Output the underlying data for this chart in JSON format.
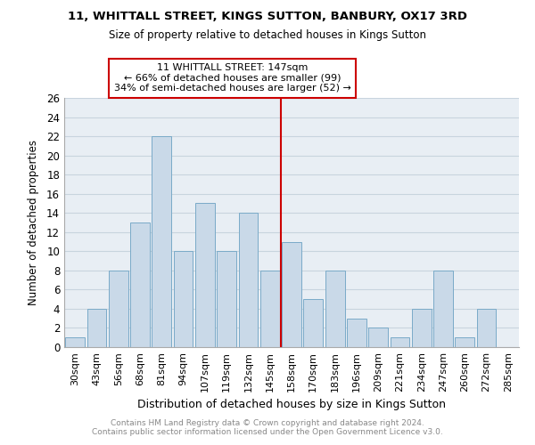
{
  "title": "11, WHITTALL STREET, KINGS SUTTON, BANBURY, OX17 3RD",
  "subtitle": "Size of property relative to detached houses in Kings Sutton",
  "xlabel": "Distribution of detached houses by size in Kings Sutton",
  "ylabel": "Number of detached properties",
  "categories": [
    "30sqm",
    "43sqm",
    "56sqm",
    "68sqm",
    "81sqm",
    "94sqm",
    "107sqm",
    "119sqm",
    "132sqm",
    "145sqm",
    "158sqm",
    "170sqm",
    "183sqm",
    "196sqm",
    "209sqm",
    "221sqm",
    "234sqm",
    "247sqm",
    "260sqm",
    "272sqm",
    "285sqm"
  ],
  "values": [
    1,
    4,
    8,
    13,
    22,
    10,
    15,
    10,
    14,
    8,
    11,
    5,
    8,
    3,
    2,
    1,
    4,
    8,
    1,
    4,
    0
  ],
  "bar_color": "#c9d9e8",
  "bar_edge_color": "#7aaac8",
  "grid_color": "#c8d4de",
  "background_color": "#e8eef4",
  "vline_color": "#cc0000",
  "annotation_text": "11 WHITTALL STREET: 147sqm\n← 66% of detached houses are smaller (99)\n34% of semi-detached houses are larger (52) →",
  "annotation_box_color": "#ffffff",
  "annotation_box_edge_color": "#cc0000",
  "footer_text": "Contains HM Land Registry data © Crown copyright and database right 2024.\nContains public sector information licensed under the Open Government Licence v3.0.",
  "ylim": [
    0,
    26
  ],
  "yticks": [
    0,
    2,
    4,
    6,
    8,
    10,
    12,
    14,
    16,
    18,
    20,
    22,
    24,
    26
  ],
  "vline_pos": 9.5
}
